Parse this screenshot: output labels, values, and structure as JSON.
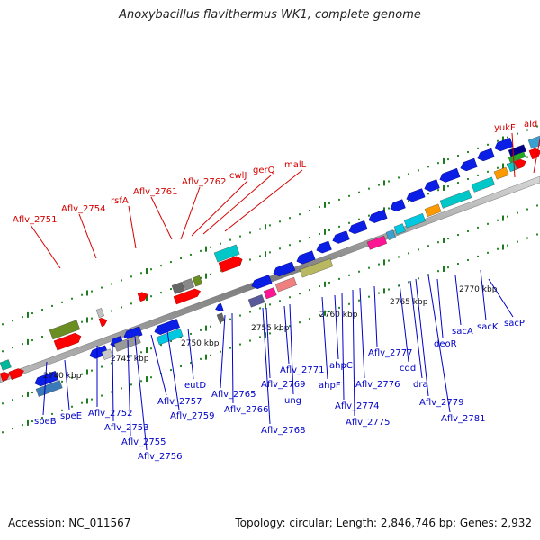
{
  "title": "Anoxybacillus flavithermus WK1, complete genome",
  "footer": {
    "accession": "Accession: NC_011567",
    "summary": "Topology: circular; Length: 2,846,746 bp; Genes: 2,932"
  },
  "colors": {
    "forward_label": "#d40000",
    "reverse_label": "#0000c8",
    "backbone": "#8a8a8a",
    "gene_forward": "#ff0000",
    "gene_reverse": "#0a1ee6"
  },
  "scale_labels": [
    "2740 kbp",
    "2745 kbp",
    "2750 kbp",
    "2755 kbp",
    "2760 kbp",
    "2765 kbp",
    "2770 kbp"
  ],
  "top_labels": [
    "Aflv_2751",
    "Aflv_2754",
    "rsfA",
    "Aflv_2761",
    "Aflv_2762",
    "cwlJ",
    "gerQ",
    "malL",
    "yukF",
    "ald"
  ],
  "bottom_labels": [
    "speB",
    "speE",
    "Aflv_2752",
    "Aflv_2753",
    "Aflv_2755",
    "Aflv_2756",
    "Aflv_2757",
    "Aflv_2759",
    "eutD",
    "Aflv_2765",
    "Aflv_2766",
    "Aflv_2768",
    "ung",
    "Aflv_2769",
    "Aflv_2771",
    "ahpF",
    "ahpC",
    "Aflv_2774",
    "Aflv_2775",
    "Aflv_2776",
    "Aflv_2777",
    "cdd",
    "dra",
    "Aflv_2779",
    "Aflv_2781",
    "deoR",
    "sacA",
    "sacK",
    "sacP"
  ]
}
